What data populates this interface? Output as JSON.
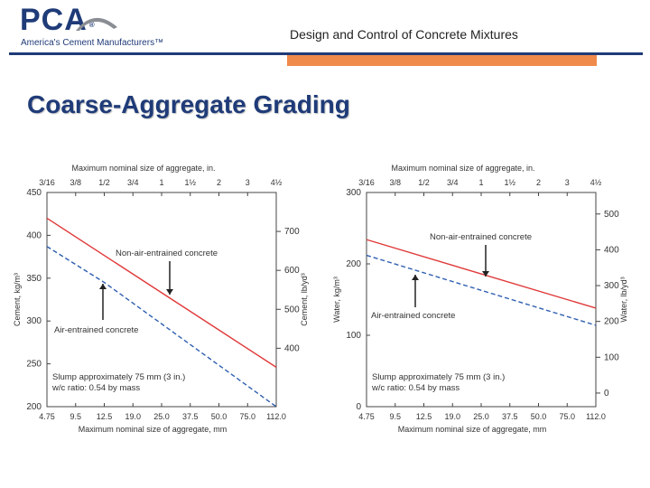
{
  "header": {
    "logo_text": "PCA",
    "logo_tagline": "America's Cement Manufacturers™",
    "title": "Design and Control of Concrete Mixtures"
  },
  "slide": {
    "title": "Coarse-Aggregate Grading"
  },
  "colors": {
    "brand_blue": "#1f3b78",
    "accent_orange": "#f08a4b",
    "non_air_line": "#e03a3a",
    "air_line": "#2f5fb0"
  },
  "chart_data": [
    {
      "type": "line",
      "top_axis_title": "Maximum nominal size of aggregate, in.",
      "top_ticks": [
        "3/16",
        "3/8",
        "1/2",
        "3/4",
        "1",
        "1½",
        "2",
        "3",
        "4½"
      ],
      "xlabel": "Maximum nominal size of aggregate, mm",
      "x_ticks": [
        "4.75",
        "9.5",
        "12.5",
        "19.0",
        "25.0",
        "37.5",
        "50.0",
        "75.0",
        "112.0"
      ],
      "ylabel": "Cement, kg/m³",
      "ylim": [
        200,
        450
      ],
      "y_ticks": [
        "450",
        "400",
        "350",
        "300",
        "250",
        "200"
      ],
      "y2label": "Cement, lb/yd³",
      "y2_ticks": [
        "700",
        "600",
        "500",
        "400"
      ],
      "series": [
        {
          "name": "Non-air-entrained concrete",
          "x": [
            "4.75",
            "112.0"
          ],
          "values": [
            420,
            246
          ],
          "style": "solid"
        },
        {
          "name": "Air-entrained concrete",
          "x": [
            "4.75",
            "12.5",
            "112.0"
          ],
          "values": [
            387,
            345,
            200
          ],
          "style": "dashed"
        }
      ],
      "annotations": [
        "Slump approximately 75 mm (3 in.)",
        "w/c ratio: 0.54 by mass"
      ]
    },
    {
      "type": "line",
      "top_axis_title": "Maximum nominal size of aggregate, in.",
      "top_ticks": [
        "3/16",
        "3/8",
        "1/2",
        "3/4",
        "1",
        "1½",
        "2",
        "3",
        "4½"
      ],
      "xlabel": "Maximum nominal size of aggregate, mm",
      "x_ticks": [
        "4.75",
        "9.5",
        "12.5",
        "19.0",
        "25.0",
        "37.5",
        "50.0",
        "75.0",
        "112.0"
      ],
      "ylabel": "Water, kg/m³",
      "ylim": [
        0,
        300
      ],
      "y_ticks": [
        "300",
        "200",
        "100",
        "0"
      ],
      "y2label": "Water, lb/yd³",
      "y2_ticks": [
        "500",
        "400",
        "300",
        "200",
        "100",
        "0"
      ],
      "series": [
        {
          "name": "Non-air-entrained concrete",
          "x": [
            "4.75",
            "112.0"
          ],
          "values": [
            234,
            138
          ],
          "style": "solid"
        },
        {
          "name": "Air-entrained concrete",
          "x": [
            "4.75",
            "112.0"
          ],
          "values": [
            212,
            114
          ],
          "style": "dashed"
        }
      ],
      "annotations": [
        "Slump approximately 75 mm (3 in.)",
        "w/c ratio: 0.54 by mass"
      ]
    }
  ]
}
